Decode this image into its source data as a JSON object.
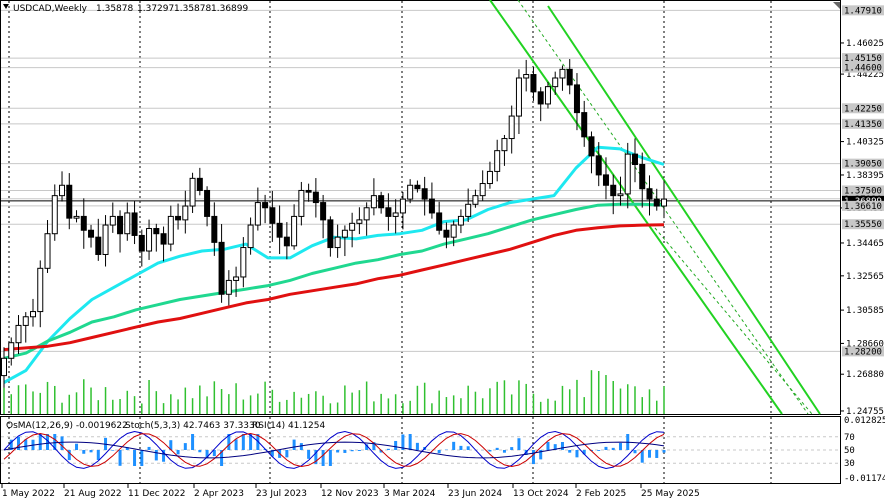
{
  "chart_data": {
    "type": "candlestick",
    "symbol_header": {
      "symbol": "USDCAD,Weekly",
      "open": "1.35878",
      "high": "1.37297",
      "low": "1.35878",
      "close": "1.36899"
    },
    "price_range": [
      1.2458,
      1.4845
    ],
    "price_axis_ticks": [
      "1.46025",
      "1.44225",
      "1.40325",
      "1.38395",
      "1.36490",
      "1.34465",
      "1.32565",
      "1.30585",
      "1.28660",
      "1.26880",
      "1.24755"
    ],
    "key_levels": [
      {
        "value": 1.4791,
        "label": "1.47910",
        "color": "#c8c8c8"
      },
      {
        "value": 1.4515,
        "label": "1.45150",
        "color": "#c8c8c8"
      },
      {
        "value": 1.446,
        "label": "1.44600",
        "color": "#c8c8c8"
      },
      {
        "value": 1.4225,
        "label": "1.42250",
        "color": "#c8c8c8"
      },
      {
        "value": 1.4135,
        "label": "1.41350",
        "color": "#c8c8c8"
      },
      {
        "value": 1.3905,
        "label": "1.39050",
        "color": "#c8c8c8"
      },
      {
        "value": 1.375,
        "label": "1.37500",
        "color": "#c8c8c8"
      },
      {
        "value": 1.3702,
        "label": "1.37020",
        "color": "#c8c8c8"
      },
      {
        "value": 1.36899,
        "label": "1.36899",
        "color": "#000000"
      },
      {
        "value": 1.3661,
        "label": "1.36610",
        "color": "#c8c8c8"
      },
      {
        "value": 1.3555,
        "label": "1.35550",
        "color": "#c8c8c8"
      },
      {
        "value": 1.282,
        "label": "1.28200",
        "color": "#c8c8c8"
      }
    ],
    "time_labels": [
      "1 May 2022",
      "21 Aug 2022",
      "11 Dec 2022",
      "2 Apr 2023",
      "23 Jul 2023",
      "12 Nov 2023",
      "3 Mar 2024",
      "23 Jun 2024",
      "13 Oct 2024",
      "2 Feb 2025",
      "25 May 2025"
    ],
    "moving_averages": [
      {
        "color": "#1ee8f0",
        "points": [
          1.264,
          1.271,
          1.288,
          1.301,
          1.312,
          1.319,
          1.326,
          1.333,
          1.337,
          1.34,
          1.341,
          1.344,
          1.336,
          1.336,
          1.343,
          1.348,
          1.347,
          1.349,
          1.35,
          1.352,
          1.357,
          1.358,
          1.364,
          1.368,
          1.37,
          1.372,
          1.388,
          1.4,
          1.399,
          1.394,
          1.39
        ]
      },
      {
        "color": "#20d890",
        "points": [
          1.278,
          1.281,
          1.288,
          1.293,
          1.299,
          1.302,
          1.306,
          1.309,
          1.312,
          1.314,
          1.316,
          1.318,
          1.32,
          1.323,
          1.327,
          1.33,
          1.333,
          1.335,
          1.338,
          1.34,
          1.344,
          1.347,
          1.35,
          1.354,
          1.358,
          1.361,
          1.364,
          1.3665,
          1.367,
          1.367,
          1.3665
        ]
      },
      {
        "color": "#e01010",
        "points": [
          1.283,
          1.284,
          1.285,
          1.287,
          1.29,
          1.293,
          1.296,
          1.299,
          1.301,
          1.304,
          1.307,
          1.31,
          1.312,
          1.315,
          1.317,
          1.319,
          1.321,
          1.324,
          1.326,
          1.329,
          1.332,
          1.335,
          1.338,
          1.341,
          1.345,
          1.349,
          1.352,
          1.3535,
          1.3545,
          1.355,
          1.3552
        ]
      }
    ],
    "closes": [
      1.278,
      1.287,
      1.297,
      1.302,
      1.305,
      1.33,
      1.35,
      1.372,
      1.378,
      1.359,
      1.36,
      1.352,
      1.348,
      1.338,
      1.355,
      1.36,
      1.35,
      1.362,
      1.349,
      1.34,
      1.353,
      1.35,
      1.344,
      1.36,
      1.358,
      1.366,
      1.382,
      1.375,
      1.36,
      1.345,
      1.315,
      1.323,
      1.325,
      1.342,
      1.355,
      1.368,
      1.365,
      1.356,
      1.348,
      1.343,
      1.36,
      1.375,
      1.374,
      1.368,
      1.358,
      1.342,
      1.348,
      1.352,
      1.356,
      1.358,
      1.365,
      1.372,
      1.365,
      1.36,
      1.362,
      1.37,
      1.378,
      1.376,
      1.37,
      1.362,
      1.352,
      1.348,
      1.355,
      1.36,
      1.367,
      1.372,
      1.379,
      1.386,
      1.398,
      1.405,
      1.418,
      1.44,
      1.442,
      1.432,
      1.425,
      1.435,
      1.44,
      1.445,
      1.436,
      1.42,
      1.406,
      1.395,
      1.384,
      1.378,
      1.372,
      1.373,
      1.396,
      1.39,
      1.376,
      1.37,
      1.366,
      1.37
    ],
    "osma_label": "OsMA(12,26,9) -0.0019622",
    "stoch_label": "Stoch(5,3,3) 42.7463 37.3330",
    "rsi_label": "RSI(14) 41.1254",
    "osc_axis_ticks": [
      "0.012825",
      "70",
      "50",
      "30",
      "-0.011743"
    ]
  }
}
